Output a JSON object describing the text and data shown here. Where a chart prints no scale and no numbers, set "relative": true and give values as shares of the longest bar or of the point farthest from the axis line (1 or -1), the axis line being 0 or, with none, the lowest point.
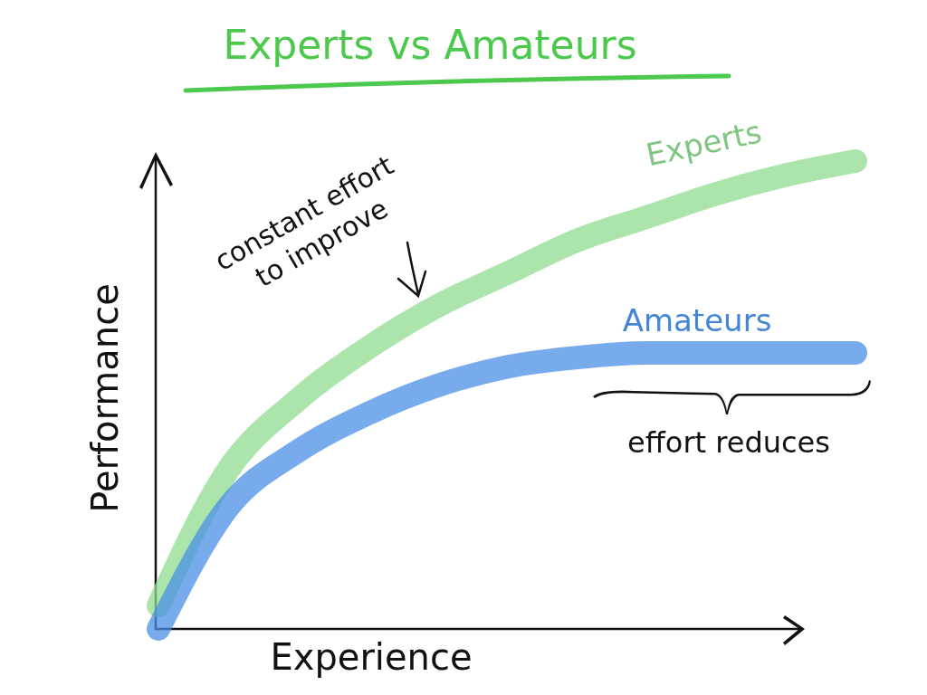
{
  "chart_data": {
    "type": "line",
    "title": "Experts vs Amateurs",
    "xlabel": "Experience",
    "ylabel": "Performance",
    "relative": true,
    "legend": false,
    "line_style": "solid",
    "marker": "none",
    "categories": [
      null,
      null,
      null,
      null,
      null,
      null,
      null,
      null,
      null,
      null,
      null
    ],
    "series": [
      {
        "name": "Experts",
        "color": "#8fdc8f",
        "values": [
          0.05,
          0.34,
          0.49,
          0.6,
          0.69,
          0.76,
          0.83,
          0.88,
          0.93,
          0.97,
          1
        ]
      },
      {
        "name": "Amateurs",
        "color": "#4a8fe6",
        "values": [
          0,
          0.26,
          0.38,
          0.46,
          0.52,
          0.56,
          0.58,
          0.59,
          0.59,
          0.59,
          0.59
        ]
      }
    ],
    "annotations": [
      "constant effort to improve",
      "effort reduces"
    ]
  }
}
